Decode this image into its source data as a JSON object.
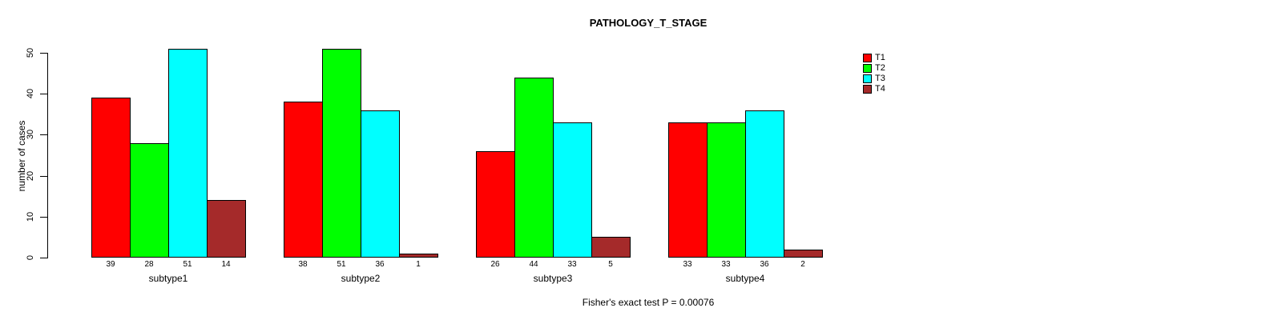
{
  "chart_data": {
    "type": "bar",
    "grouped": true,
    "title": "PATHOLOGY_T_STAGE",
    "xlabel": "",
    "ylabel": "number of cases",
    "ylim": [
      0,
      50
    ],
    "yticks": [
      0,
      10,
      20,
      30,
      40,
      50
    ],
    "grid": false,
    "legend_position": "top-right",
    "bar_value_labels_shown": true,
    "categories": [
      "subtype1",
      "subtype2",
      "subtype3",
      "subtype4"
    ],
    "series": [
      {
        "name": "T1",
        "color": "#FF0000",
        "values": [
          39,
          38,
          26,
          33
        ]
      },
      {
        "name": "T2",
        "color": "#00FF00",
        "values": [
          28,
          51,
          44,
          33
        ]
      },
      {
        "name": "T3",
        "color": "#00FFFF",
        "values": [
          51,
          36,
          33,
          36
        ]
      },
      {
        "name": "T4",
        "color": "#A52A2A",
        "values": [
          14,
          1,
          5,
          2
        ]
      }
    ],
    "annotation": "Fisher's exact test P = 0.00076"
  },
  "colors": {
    "axis": "#000000",
    "background": "#FFFFFF",
    "t1": "#FF0000",
    "t2": "#00FF00",
    "t3": "#00FFFF",
    "t4": "#A52A2A"
  }
}
